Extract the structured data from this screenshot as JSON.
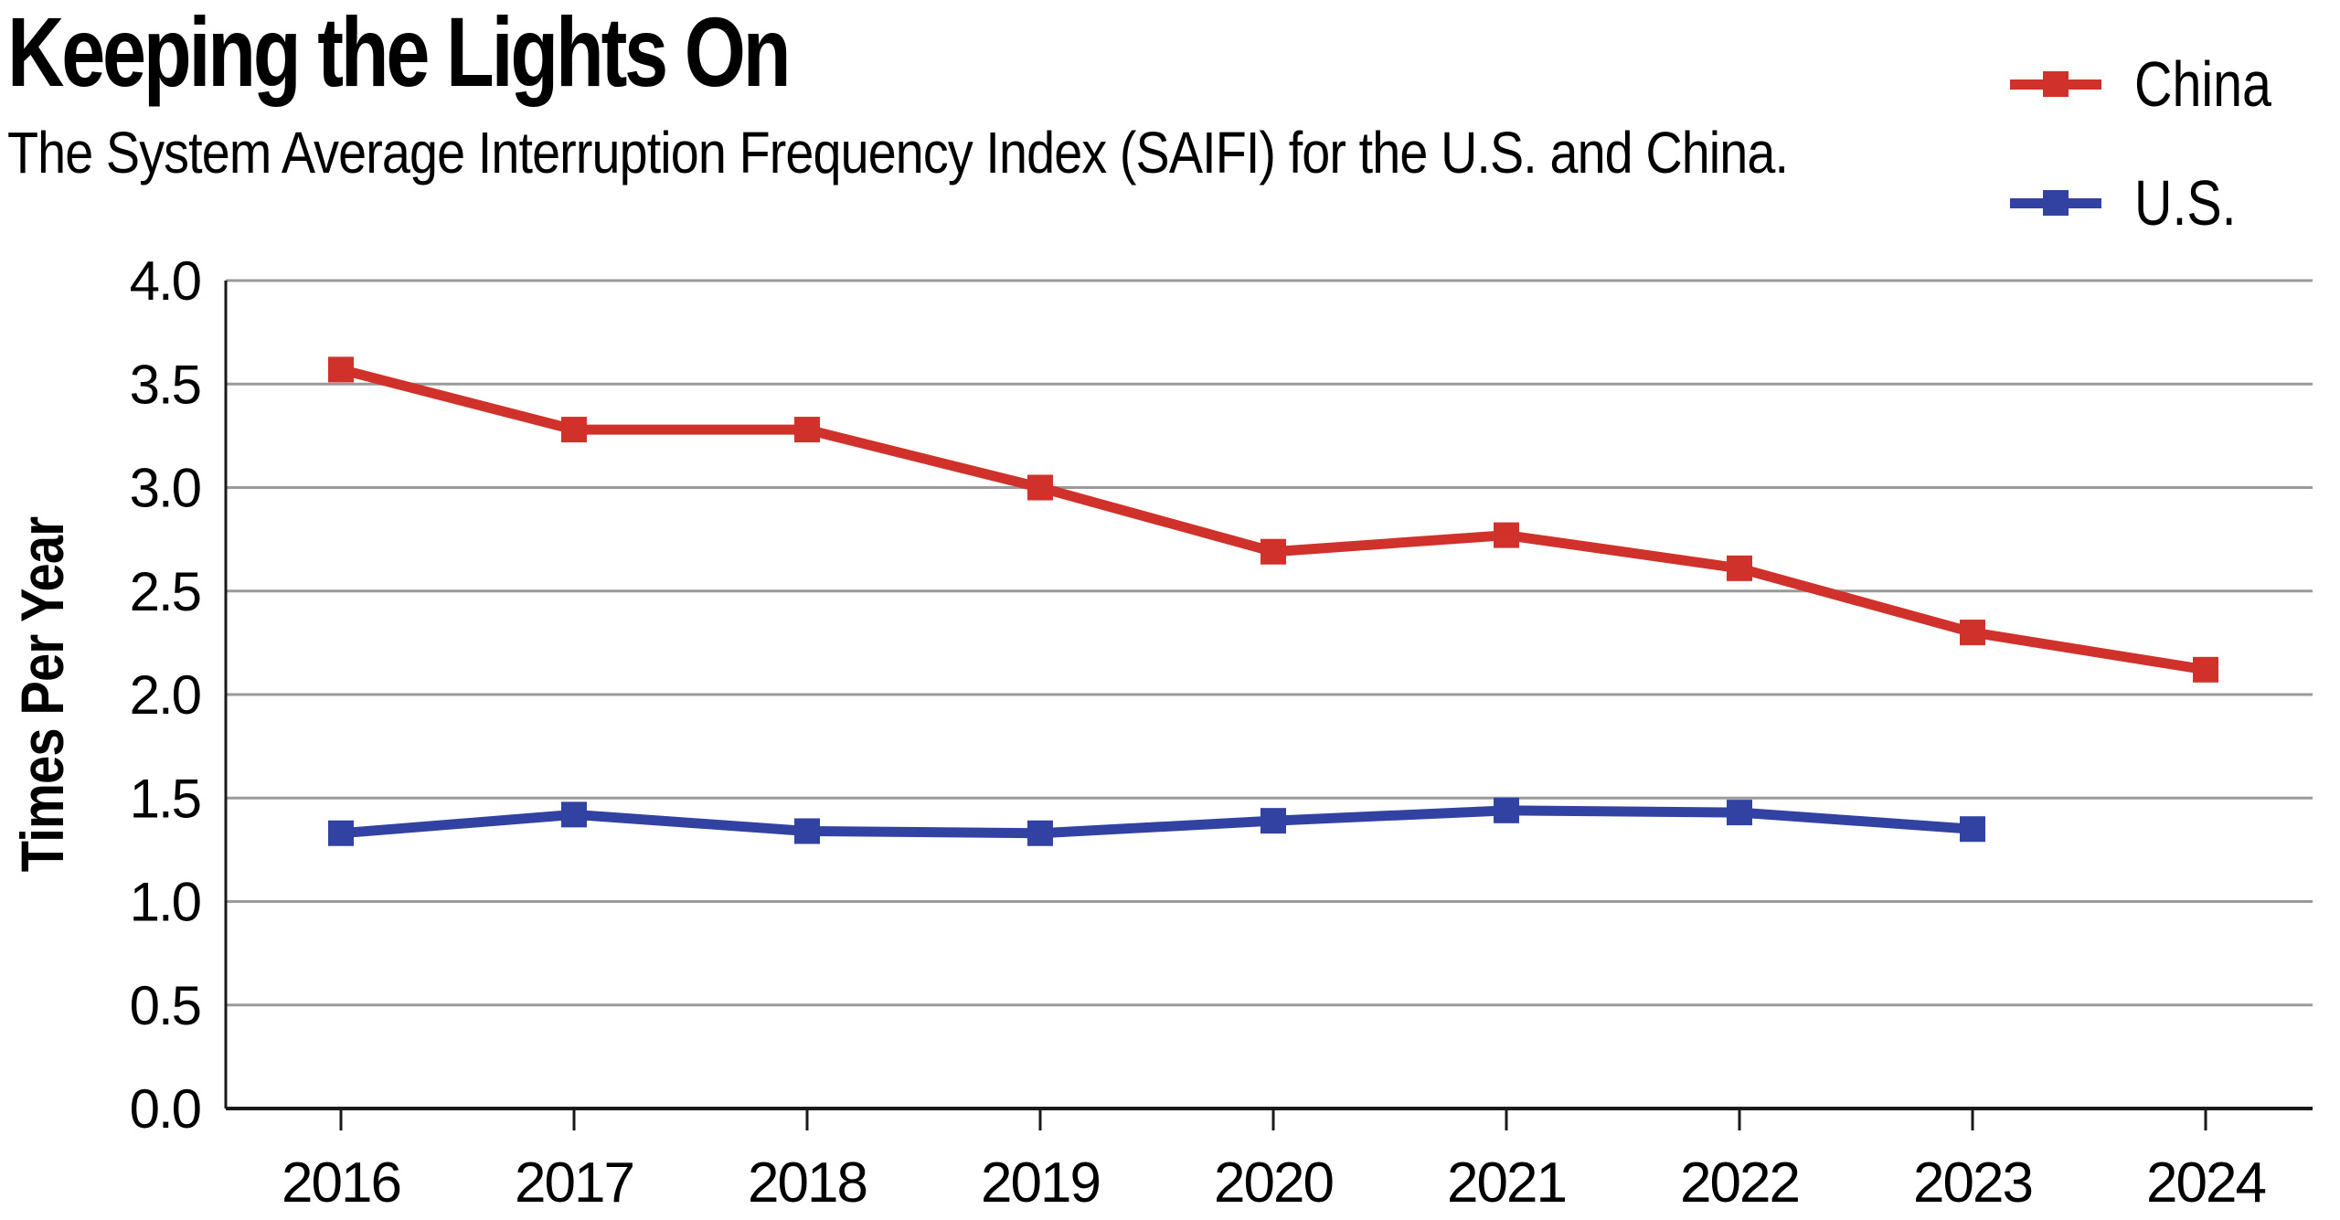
{
  "chart_data": {
    "type": "line",
    "title": "Keeping the Lights On",
    "subtitle": "The System Average Interruption Frequency Index (SAIFI) for the U.S. and China.",
    "xlabel": "",
    "ylabel": "Times Per Year",
    "categories": [
      "2016",
      "2017",
      "2018",
      "2019",
      "2020",
      "2021",
      "2022",
      "2023",
      "2024"
    ],
    "series": [
      {
        "name": "China",
        "color": "#d0312a",
        "marker": "square",
        "values": [
          3.57,
          3.28,
          3.28,
          3.0,
          2.69,
          2.77,
          2.61,
          2.3,
          2.12
        ]
      },
      {
        "name": "U.S.",
        "color": "#3142a3",
        "marker": "square",
        "values": [
          1.33,
          1.42,
          1.34,
          1.33,
          1.39,
          1.44,
          1.43,
          1.35,
          null
        ]
      }
    ],
    "ylim": [
      0.0,
      4.0
    ],
    "ytick_step": 0.5,
    "ytick_labels": [
      "0.0",
      "0.5",
      "1.0",
      "1.5",
      "2.0",
      "2.5",
      "3.0",
      "3.5",
      "4.0"
    ],
    "grid": "horizontal",
    "gridline_color": "#9a9a9a",
    "axis_color": "#1a1a1a",
    "legend_position": "top-right"
  }
}
